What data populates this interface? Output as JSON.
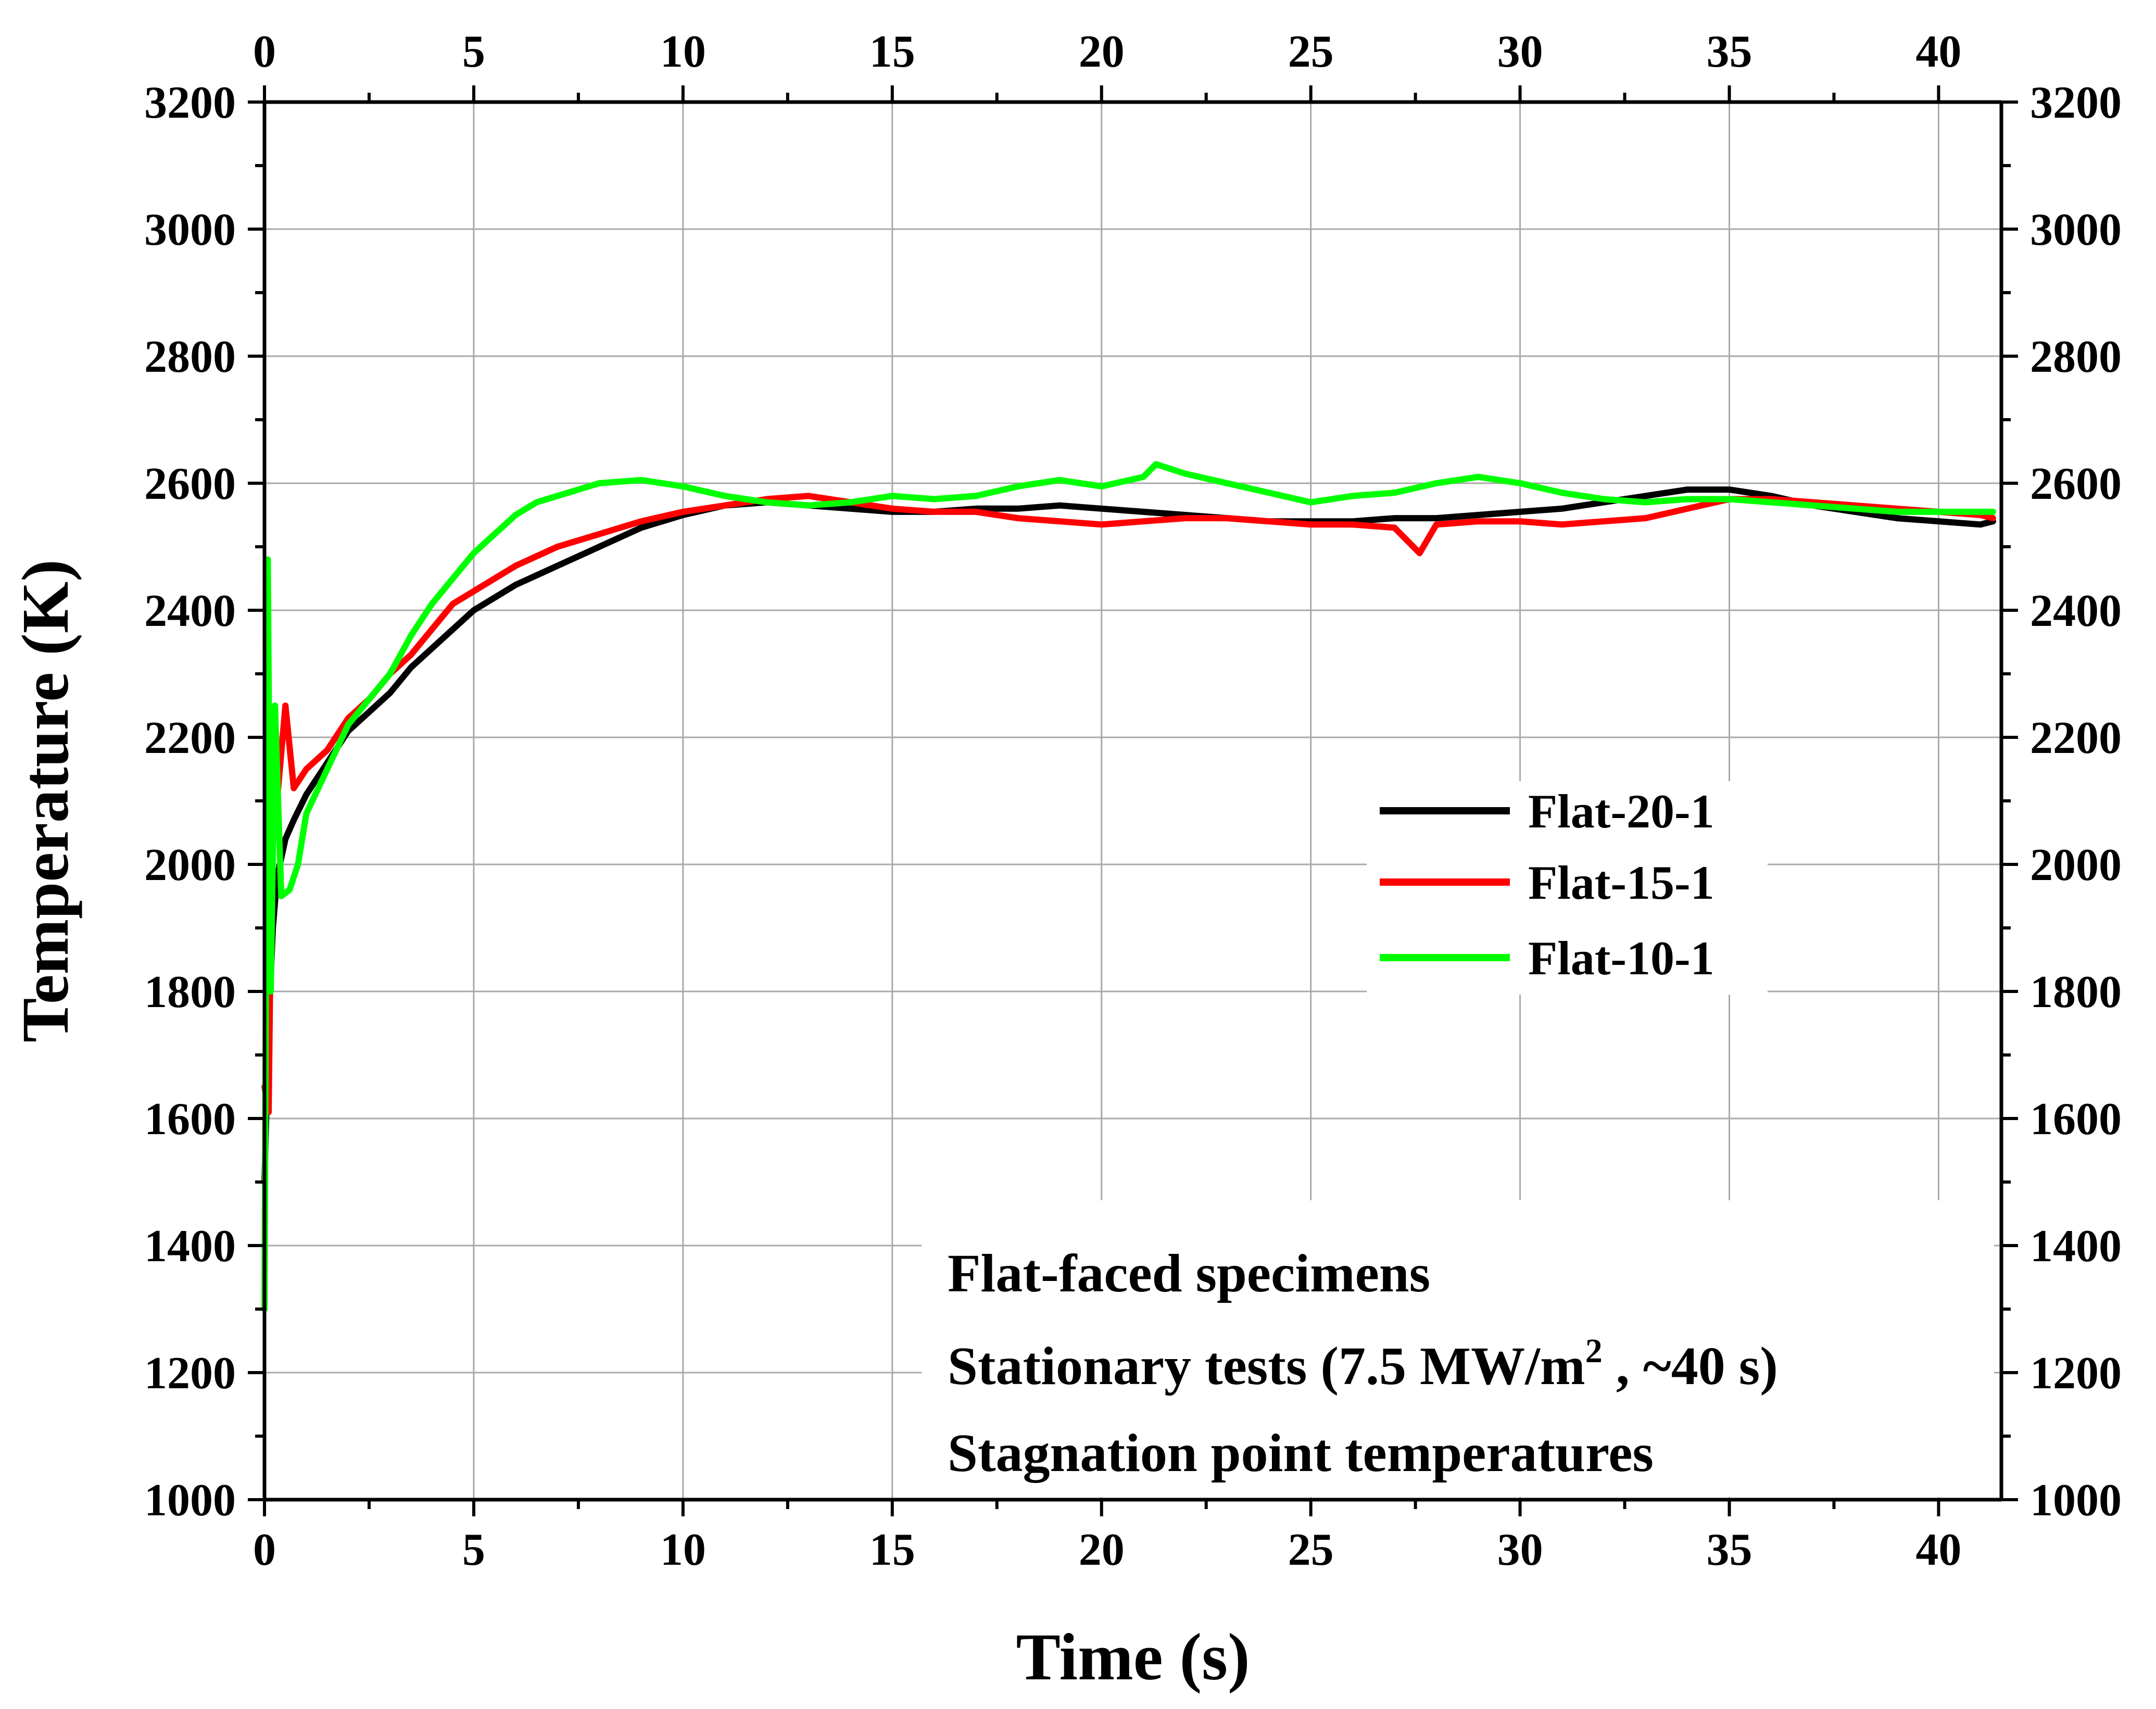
{
  "chart_data": {
    "type": "line",
    "title": "",
    "xlabel": "Time (s)",
    "ylabel": "Temperature (K)",
    "xlim": [
      0,
      41.5
    ],
    "ylim": [
      1000,
      3200
    ],
    "x_ticks": [
      0,
      5,
      10,
      15,
      20,
      25,
      30,
      35,
      40
    ],
    "y_ticks": [
      1000,
      1200,
      1400,
      1600,
      1800,
      2000,
      2200,
      2400,
      2600,
      2800,
      3000,
      3200
    ],
    "grid": true,
    "legend_position": "center-right",
    "series": [
      {
        "name": "Flat-20-1",
        "color": "#000000",
        "x": [
          0,
          0.1,
          0.2,
          0.3,
          0.5,
          0.7,
          1,
          1.5,
          2,
          2.5,
          3,
          3.5,
          4,
          4.5,
          5,
          6,
          7,
          8,
          9,
          10,
          11,
          12,
          13,
          14,
          15,
          16,
          17,
          18,
          19,
          20,
          21,
          22,
          23,
          24,
          25,
          26,
          27,
          28,
          29,
          30,
          31,
          32,
          33,
          34,
          35,
          36,
          37,
          38,
          39,
          40,
          41,
          41.3
        ],
        "values": [
          1500,
          1750,
          1900,
          1980,
          2040,
          2070,
          2110,
          2160,
          2210,
          2240,
          2270,
          2310,
          2340,
          2370,
          2400,
          2440,
          2470,
          2500,
          2530,
          2550,
          2565,
          2570,
          2565,
          2560,
          2555,
          2555,
          2560,
          2560,
          2565,
          2560,
          2555,
          2550,
          2545,
          2540,
          2540,
          2540,
          2545,
          2545,
          2550,
          2555,
          2560,
          2570,
          2580,
          2590,
          2590,
          2580,
          2565,
          2555,
          2545,
          2540,
          2535,
          2540
        ]
      },
      {
        "name": "Flat-15-1",
        "color": "#ff0000",
        "x": [
          0,
          0.1,
          0.2,
          0.3,
          0.5,
          0.7,
          1,
          1.5,
          2,
          2.5,
          3,
          3.5,
          4,
          4.5,
          5,
          6,
          7,
          8,
          9,
          10,
          11,
          12,
          13,
          14,
          15,
          16,
          17,
          18,
          19,
          20,
          21,
          22,
          23,
          24,
          25,
          26,
          27,
          27.6,
          28,
          29,
          30,
          31,
          32,
          33,
          34,
          35,
          36,
          37,
          38,
          39,
          40,
          41,
          41.3
        ],
        "values": [
          1650,
          1610,
          2200,
          2100,
          2250,
          2120,
          2150,
          2180,
          2230,
          2260,
          2300,
          2330,
          2370,
          2410,
          2430,
          2470,
          2500,
          2520,
          2540,
          2555,
          2565,
          2575,
          2580,
          2570,
          2560,
          2555,
          2555,
          2545,
          2540,
          2535,
          2540,
          2545,
          2545,
          2540,
          2535,
          2535,
          2530,
          2490,
          2535,
          2540,
          2540,
          2535,
          2540,
          2545,
          2560,
          2575,
          2575,
          2570,
          2565,
          2560,
          2555,
          2550,
          2545
        ]
      },
      {
        "name": "Flat-10-1",
        "color": "#00ff00",
        "x": [
          0,
          0.08,
          0.15,
          0.25,
          0.4,
          0.6,
          0.8,
          1,
          1.5,
          2,
          2.5,
          3,
          3.5,
          4,
          4.5,
          5,
          5.5,
          6,
          6.5,
          7,
          8,
          9,
          10,
          11,
          12,
          13,
          14,
          15,
          16,
          17,
          18,
          19,
          20,
          21,
          21.3,
          22,
          23,
          24,
          25,
          26,
          27,
          28,
          29,
          30,
          31,
          32,
          33,
          34,
          35,
          36,
          37,
          38,
          39,
          40,
          41,
          41.3
        ],
        "values": [
          1300,
          2480,
          1800,
          2250,
          1950,
          1960,
          2000,
          2080,
          2150,
          2220,
          2260,
          2300,
          2360,
          2410,
          2450,
          2490,
          2520,
          2550,
          2570,
          2580,
          2600,
          2605,
          2595,
          2580,
          2570,
          2565,
          2570,
          2580,
          2575,
          2580,
          2595,
          2605,
          2595,
          2610,
          2630,
          2615,
          2600,
          2585,
          2570,
          2580,
          2585,
          2600,
          2610,
          2600,
          2585,
          2575,
          2570,
          2575,
          2575,
          2570,
          2565,
          2560,
          2555,
          2555,
          2555,
          2555
        ]
      }
    ],
    "annotations": [
      "Flat-faced specimens",
      "Stationary tests (7.5 MW/m",
      "2",
      " , ~40 s)",
      "Stagnation point temperatures"
    ]
  }
}
